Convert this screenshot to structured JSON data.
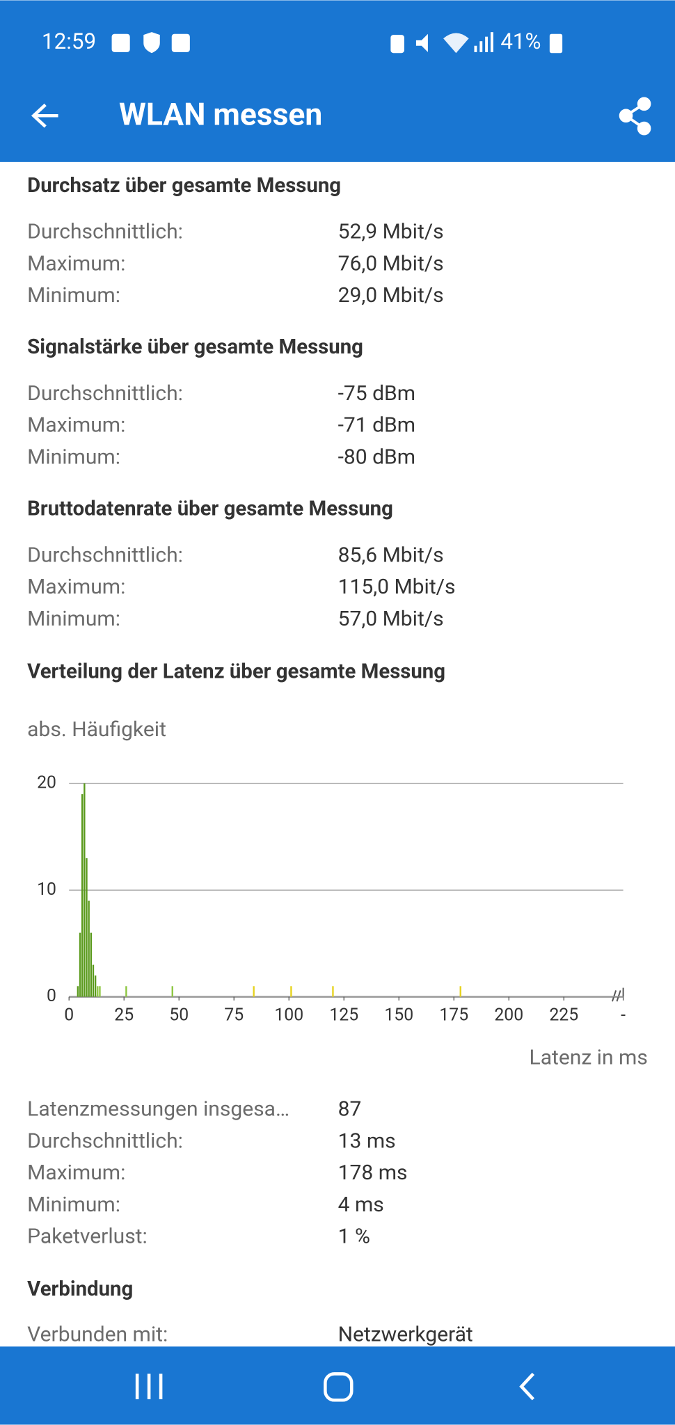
{
  "status_bar": {
    "time": "12:59",
    "battery": "41%"
  },
  "app_bar": {
    "title": "WLAN messen"
  },
  "sections": [
    {
      "heading": "Durchsatz über gesamte Messung",
      "rows": [
        [
          "Durchschnittlich:",
          "52,9 Mbit/s"
        ],
        [
          "Maximum:",
          "76,0 Mbit/s"
        ],
        [
          "Minimum:",
          "29,0 Mbit/s"
        ]
      ]
    },
    {
      "heading": "Signalstärke über gesamte Messung",
      "rows": [
        [
          "Durchschnittlich:",
          "-75 dBm"
        ],
        [
          "Maximum:",
          "-71 dBm"
        ],
        [
          "Minimum:",
          "-80 dBm"
        ]
      ]
    },
    {
      "heading": "Bruttodatenrate über gesamte Messung",
      "rows": [
        [
          "Durchschnittlich:",
          "85,6 Mbit/s"
        ],
        [
          "Maximum:",
          "115,0 Mbit/s"
        ],
        [
          "Minimum:",
          "57,0 Mbit/s"
        ]
      ]
    },
    {
      "heading": "Verteilung der Latenz über gesamte Messung",
      "chart": {
        "type": "bar",
        "y_label": "abs. Häufigkeit",
        "x_label": "Latenz in ms",
        "x": [
          4,
          5,
          6,
          7,
          8,
          9,
          10,
          11,
          12,
          13,
          14,
          26,
          47,
          84,
          101,
          120,
          178
        ],
        "values": [
          1,
          6,
          19,
          20,
          13,
          9,
          6,
          3,
          2,
          1,
          1,
          1,
          1,
          1,
          1,
          1,
          1
        ],
        "colors": [
          "#5a9a1c",
          "#5a9a1c",
          "#5a9a1c",
          "#5a9a1c",
          "#5a9a1c",
          "#5a9a1c",
          "#5a9a1c",
          "#5a9a1c",
          "#5a9a1c",
          "#8cc63f",
          "#8cc63f",
          "#8cc63f",
          "#8cc63f",
          "#e6d21c",
          "#e6d21c",
          "#e6d21c",
          "#e6d21c"
        ],
        "xlim": [
          0,
          252
        ],
        "ylim": [
          0,
          20
        ],
        "xticks": [
          0,
          25,
          50,
          75,
          100,
          125,
          150,
          175,
          200,
          225,
          {
            "value": 252,
            "label": "-"
          }
        ],
        "yticks": [
          0,
          10,
          20
        ],
        "grid": true
      },
      "rows": [
        [
          "Latenzmessungen insgesa…",
          "87"
        ],
        [
          "Durchschnittlich:",
          "13 ms"
        ],
        [
          "Maximum:",
          "178 ms"
        ],
        [
          "Minimum:",
          "4 ms"
        ],
        [
          "Paketverlust:",
          "1 %"
        ]
      ]
    },
    {
      "heading": "Verbindung",
      "rows": [
        [
          "Verbunden mit:",
          "Netzwerkgerät"
        ]
      ]
    }
  ]
}
